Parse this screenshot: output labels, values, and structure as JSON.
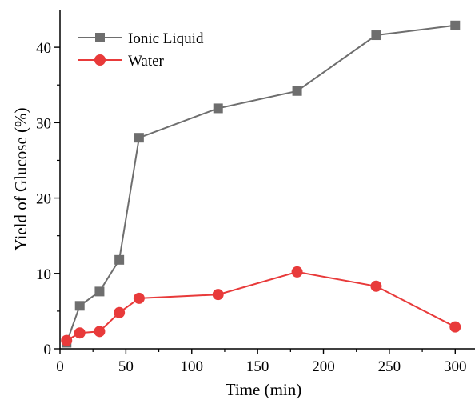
{
  "chart_data": {
    "type": "line",
    "xlabel": "Time (min)",
    "ylabel": "Yield of Glucose (%)",
    "xlim": [
      0,
      315
    ],
    "ylim": [
      0,
      45
    ],
    "xticks": [
      0,
      50,
      100,
      150,
      200,
      250,
      300
    ],
    "yticks": [
      0,
      10,
      20,
      30,
      40
    ],
    "grid": false,
    "legend_position": "top-left",
    "series": [
      {
        "name": "Ionic Liquid",
        "marker": "square",
        "color": "#6e6e6e",
        "x": [
          5,
          15,
          30,
          45,
          60,
          120,
          180,
          240,
          300
        ],
        "y": [
          0.8,
          5.7,
          7.6,
          11.8,
          28.0,
          31.9,
          34.2,
          41.6,
          42.9
        ]
      },
      {
        "name": "Water",
        "marker": "circle",
        "color": "#e83a3a",
        "x": [
          5,
          15,
          30,
          45,
          60,
          120,
          180,
          240,
          300
        ],
        "y": [
          1.1,
          2.1,
          2.3,
          4.8,
          6.7,
          7.2,
          10.2,
          8.3,
          2.9
        ]
      }
    ]
  }
}
